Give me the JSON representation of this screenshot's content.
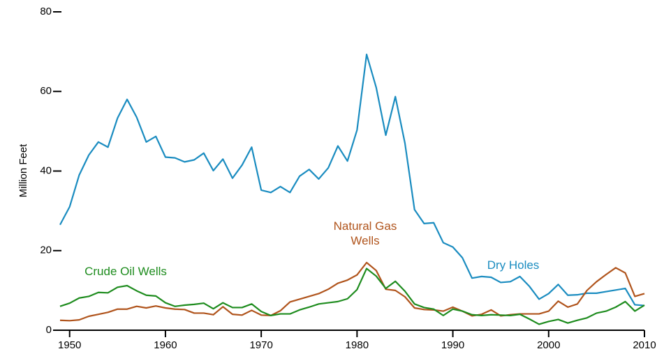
{
  "chart_data": {
    "type": "line",
    "ylabel": "Million Feet",
    "x": [
      1949,
      1950,
      1951,
      1952,
      1953,
      1954,
      1955,
      1956,
      1957,
      1958,
      1959,
      1960,
      1961,
      1962,
      1963,
      1964,
      1965,
      1966,
      1967,
      1968,
      1969,
      1970,
      1971,
      1972,
      1973,
      1974,
      1975,
      1976,
      1977,
      1978,
      1979,
      1980,
      1981,
      1982,
      1983,
      1984,
      1985,
      1986,
      1987,
      1988,
      1989,
      1990,
      1991,
      1992,
      1993,
      1994,
      1995,
      1996,
      1997,
      1998,
      1999,
      2000,
      2001,
      2002,
      2003,
      2004,
      2005,
      2006,
      2007,
      2008,
      2009,
      2010
    ],
    "xlim": [
      1949,
      2010
    ],
    "xticks": [
      1950,
      1960,
      1970,
      1980,
      1990,
      2000,
      2010
    ],
    "ylim": [
      0,
      80
    ],
    "yticks": [
      0,
      20,
      40,
      60,
      80
    ],
    "series": [
      {
        "name": "Dry Holes",
        "color": "#1a8cc0",
        "values": [
          26.5,
          31,
          39,
          44,
          47.3,
          46,
          53.3,
          58,
          53.5,
          47.3,
          48.7,
          43.5,
          43.3,
          42.3,
          42.8,
          44.5,
          40.1,
          43,
          38.2,
          41.5,
          46,
          35.2,
          34.6,
          36.1,
          34.6,
          38.7,
          40.4,
          38,
          40.8,
          46.3,
          42.5,
          50.3,
          69.3,
          61,
          49,
          58.7,
          47,
          30.3,
          26.8,
          27,
          22,
          20.9,
          18.2,
          13.1,
          13.5,
          13.3,
          12,
          12.2,
          13.5,
          11,
          7.8,
          9.2,
          11.5,
          8.8,
          8.9,
          9.3,
          9.3,
          9.7,
          10.1,
          10.5,
          6.4,
          6.2
        ]
      },
      {
        "name": "Natural Gas Wells",
        "color": "#b0541c",
        "values": [
          2.5,
          2.4,
          2.6,
          3.5,
          4,
          4.5,
          5.3,
          5.3,
          6,
          5.6,
          6.1,
          5.6,
          5.3,
          5.2,
          4.3,
          4.3,
          3.9,
          5.9,
          4,
          3.8,
          5,
          3.8,
          3.7,
          4.9,
          7.1,
          7.8,
          8.5,
          9.2,
          10.3,
          11.8,
          12.6,
          13.9,
          17,
          15,
          10.3,
          10,
          8.4,
          5.6,
          5.2,
          5.1,
          4.8,
          5.8,
          4.8,
          3.6,
          4,
          5.1,
          3.6,
          3.9,
          4.1,
          4.1,
          4.1,
          4.8,
          7.3,
          5.8,
          6.6,
          10,
          12.2,
          14,
          15.7,
          14.4,
          8.5,
          9.2
        ]
      },
      {
        "name": "Crude Oil Wells",
        "color": "#1e8c1e",
        "values": [
          6,
          6.8,
          8.1,
          8.5,
          9.5,
          9.4,
          10.8,
          11.2,
          9.9,
          8.8,
          8.6,
          6.9,
          6,
          6.3,
          6.5,
          6.8,
          5.4,
          6.9,
          5.7,
          5.7,
          6.6,
          4.7,
          3.7,
          4.1,
          4.1,
          5.1,
          5.8,
          6.6,
          6.9,
          7.2,
          7.9,
          10.2,
          15.5,
          13.6,
          10.5,
          12.3,
          9.8,
          6.6,
          5.7,
          5.3,
          3.7,
          5.3,
          4.8,
          3.9,
          3.7,
          3.9,
          3.8,
          3.7,
          4,
          2.8,
          1.5,
          2.2,
          2.7,
          1.8,
          2.5,
          3.1,
          4.3,
          4.8,
          5.8,
          7.2,
          4.8,
          6.3
        ]
      }
    ]
  }
}
